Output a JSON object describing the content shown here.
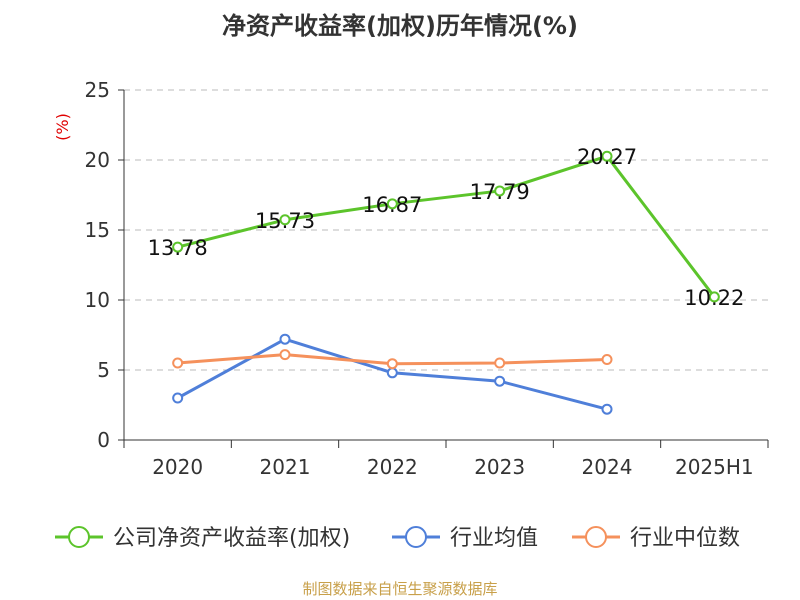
{
  "chart_data": {
    "type": "line",
    "title": "净资产收益率(加权)历年情况(%)",
    "ylabel": "(%)",
    "xlabel": "",
    "categories": [
      "2020",
      "2021",
      "2022",
      "2023",
      "2024",
      "2025H1"
    ],
    "ylim": [
      0,
      25
    ],
    "yticks": [
      "0",
      "5",
      "10",
      "15",
      "20",
      "25"
    ],
    "grid": true,
    "legend_position": "bottom",
    "series": [
      {
        "name": "公司净资产收益率(加权)",
        "color": "#5cc42b",
        "values": [
          13.78,
          15.73,
          16.87,
          17.79,
          20.27,
          10.22
        ],
        "labels": [
          "13.78",
          "15.73",
          "16.87",
          "17.79",
          "20.27",
          "10.22"
        ]
      },
      {
        "name": "行业均值",
        "color": "#4f7fd9",
        "values": [
          3.0,
          7.2,
          4.8,
          4.2,
          2.2,
          null
        ]
      },
      {
        "name": "行业中位数",
        "color": "#f5915c",
        "values": [
          5.5,
          6.1,
          5.45,
          5.5,
          5.75,
          null
        ]
      }
    ]
  },
  "source": "制图数据来自恒生聚源数据库"
}
